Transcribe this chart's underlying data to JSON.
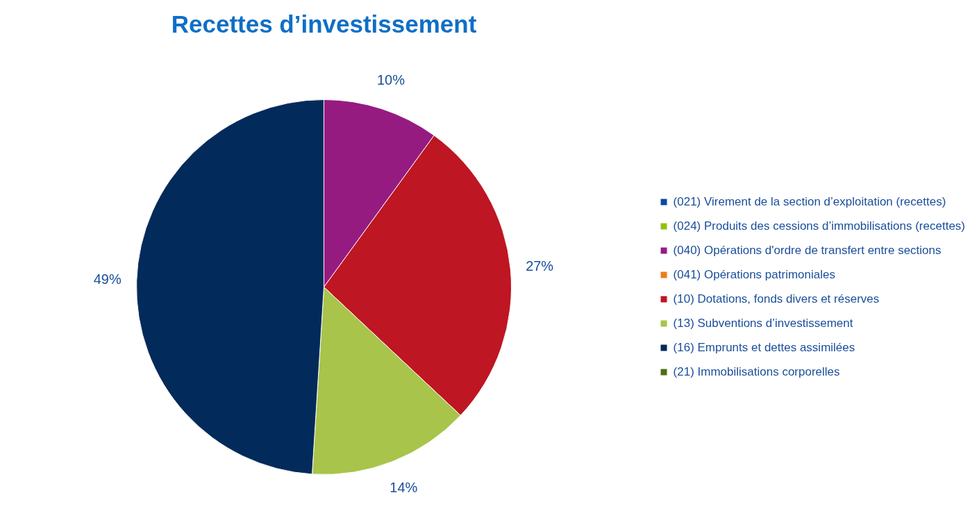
{
  "chart_data": {
    "type": "pie",
    "title": "Recettes d’investissement",
    "categories": [
      "(021) Virement de la section d’exploitation (recettes)",
      "(024) Produits des cessions d’immobilisations (recettes)",
      "(040) Opérations d'ordre de transfert entre sections",
      "(041) Opérations patrimoniales",
      "(10) Dotations, fonds divers et réserves",
      "(13) Subventions d’investissement",
      "(16) Emprunts et dettes assimilées",
      "(21) Immobilisations corporelles"
    ],
    "values": [
      0,
      0,
      10,
      0,
      27,
      14,
      49,
      0
    ],
    "colors": [
      "#0b4a9c",
      "#97bf0d",
      "#951b81",
      "#ec7d1a",
      "#be1622",
      "#a8c44a",
      "#022a5a",
      "#4e6e14"
    ],
    "value_labels": [
      null,
      null,
      "10%",
      null,
      "27%",
      "14%",
      "49%",
      null
    ],
    "legend": "right"
  }
}
